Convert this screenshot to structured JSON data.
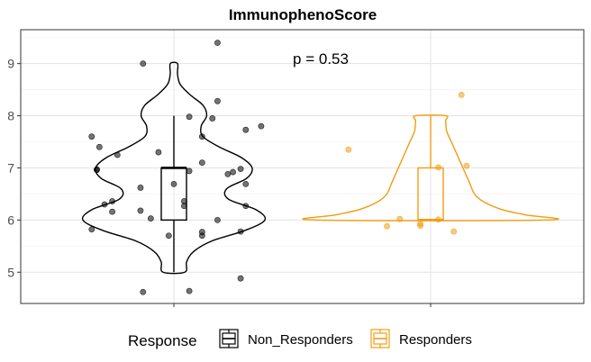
{
  "chart_data": {
    "type": "violin",
    "title": "ImmunophenoScore",
    "xlabel": "",
    "ylabel": "",
    "categories": [
      "Non_Responders",
      "Responders"
    ],
    "x_tick_labels": [
      "",
      ""
    ],
    "ylim": [
      4.4,
      9.65
    ],
    "yticks": [
      5,
      6,
      7,
      8,
      9
    ],
    "grid": true,
    "legend_position": "bottom",
    "legend_title": "Response",
    "annotation": "p = 0.53",
    "colors": {
      "Non_Responders": "#000000",
      "Responders": "#f39c12"
    },
    "series": [
      {
        "name": "Non_Responders",
        "box": {
          "min": 5,
          "q1": 6,
          "median": 7,
          "q3": 7,
          "max": 8
        },
        "violin_range": [
          5,
          9
        ],
        "violin_profile": [
          [
            5.0,
            0.12
          ],
          [
            5.2,
            0.14
          ],
          [
            5.4,
            0.22
          ],
          [
            5.6,
            0.42
          ],
          [
            5.8,
            0.78
          ],
          [
            6.0,
            1.0
          ],
          [
            6.2,
            0.9
          ],
          [
            6.4,
            0.6
          ],
          [
            6.6,
            0.58
          ],
          [
            6.8,
            0.8
          ],
          [
            7.0,
            0.86
          ],
          [
            7.2,
            0.74
          ],
          [
            7.4,
            0.5
          ],
          [
            7.6,
            0.32
          ],
          [
            7.8,
            0.3
          ],
          [
            8.0,
            0.36
          ],
          [
            8.2,
            0.32
          ],
          [
            8.4,
            0.18
          ],
          [
            8.6,
            0.07
          ],
          [
            8.8,
            0.04
          ],
          [
            9.0,
            0.04
          ]
        ],
        "points": [
          [
            -0.12,
            4.62
          ],
          [
            0.06,
            4.64
          ],
          [
            0.26,
            4.88
          ],
          [
            -0.02,
            5.7
          ],
          [
            0.11,
            5.7
          ],
          [
            0.11,
            5.77
          ],
          [
            0.26,
            5.78
          ],
          [
            -0.32,
            5.82
          ],
          [
            -0.09,
            6.03
          ],
          [
            0.17,
            6.0
          ],
          [
            -0.24,
            6.16
          ],
          [
            -0.13,
            6.18
          ],
          [
            -0.27,
            6.3
          ],
          [
            -0.24,
            6.36
          ],
          [
            0.04,
            6.27
          ],
          [
            0.04,
            6.36
          ],
          [
            0.28,
            6.27
          ],
          [
            -0.13,
            6.62
          ],
          [
            0.0,
            6.69
          ],
          [
            0.28,
            6.69
          ],
          [
            -0.3,
            6.96
          ],
          [
            -0.3,
            6.97
          ],
          [
            0.06,
            6.94
          ],
          [
            0.21,
            6.88
          ],
          [
            0.23,
            6.92
          ],
          [
            0.26,
            6.98
          ],
          [
            0.11,
            7.1
          ],
          [
            -0.22,
            7.25
          ],
          [
            -0.06,
            7.3
          ],
          [
            -0.29,
            7.4
          ],
          [
            -0.32,
            7.6
          ],
          [
            0.28,
            7.73
          ],
          [
            0.34,
            7.8
          ],
          [
            0.06,
            7.98
          ],
          [
            0.15,
            7.95
          ],
          [
            0.11,
            7.6
          ],
          [
            0.17,
            8.28
          ],
          [
            -0.12,
            9.0
          ],
          [
            0.17,
            9.4
          ]
        ]
      },
      {
        "name": "Responders",
        "box": {
          "min": 6,
          "q1": 6,
          "median": 6,
          "q3": 7,
          "max": 8
        },
        "violin_range": [
          6,
          8
        ],
        "violin_profile": [
          [
            6.0,
            1.0
          ],
          [
            6.1,
            0.82
          ],
          [
            6.2,
            0.62
          ],
          [
            6.35,
            0.46
          ],
          [
            6.5,
            0.38
          ],
          [
            6.7,
            0.34
          ],
          [
            6.9,
            0.3
          ],
          [
            7.1,
            0.26
          ],
          [
            7.3,
            0.22
          ],
          [
            7.5,
            0.18
          ],
          [
            7.7,
            0.14
          ],
          [
            7.9,
            0.13
          ],
          [
            8.0,
            0.13
          ]
        ],
        "points": [
          [
            -0.32,
            7.35
          ],
          [
            -0.12,
            6.02
          ],
          [
            -0.17,
            5.88
          ],
          [
            -0.04,
            5.89
          ],
          [
            -0.04,
            5.93
          ],
          [
            0.03,
            7.01
          ],
          [
            0.03,
            6.01
          ],
          [
            0.09,
            5.78
          ],
          [
            0.14,
            7.04
          ],
          [
            0.12,
            8.4
          ]
        ]
      }
    ]
  }
}
